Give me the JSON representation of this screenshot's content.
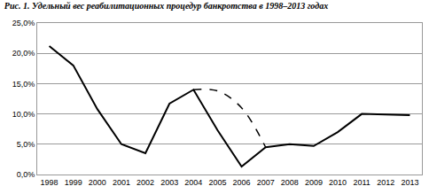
{
  "chart_data": {
    "type": "line",
    "title": "Рис. 1. Удельный вес реабилитационных процедур банкротства в 1998–2013 годах",
    "categories": [
      "1998",
      "1999",
      "2000",
      "2001",
      "2002",
      "2003",
      "2004",
      "2005",
      "2006",
      "2007",
      "2008",
      "2009",
      "2010",
      "2011",
      "2012",
      "2013"
    ],
    "series": [
      {
        "color": "#000000",
        "line_style": "solid",
        "values": [
          21.2,
          18.0,
          10.8,
          5.0,
          3.5,
          11.7,
          14.0,
          7.3,
          1.3,
          4.5,
          5.0,
          4.7,
          7.0,
          10.0,
          9.9,
          9.8
        ]
      },
      {
        "color": "#000000",
        "line_style": "dash",
        "values": [
          null,
          null,
          null,
          null,
          null,
          null,
          14.0,
          13.8,
          11.0,
          4.5,
          null,
          null,
          null,
          null,
          null,
          null
        ]
      }
    ],
    "ylim": [
      0,
      25
    ],
    "yticks": [
      {
        "value": 0,
        "label": "0,0%"
      },
      {
        "value": 5,
        "label": "5,0%"
      },
      {
        "value": 10,
        "label": "10,0%"
      },
      {
        "value": 15,
        "label": "15,0%"
      },
      {
        "value": 20,
        "label": "20,0%"
      },
      {
        "value": 25,
        "label": "25,0%"
      }
    ],
    "grid": true
  }
}
